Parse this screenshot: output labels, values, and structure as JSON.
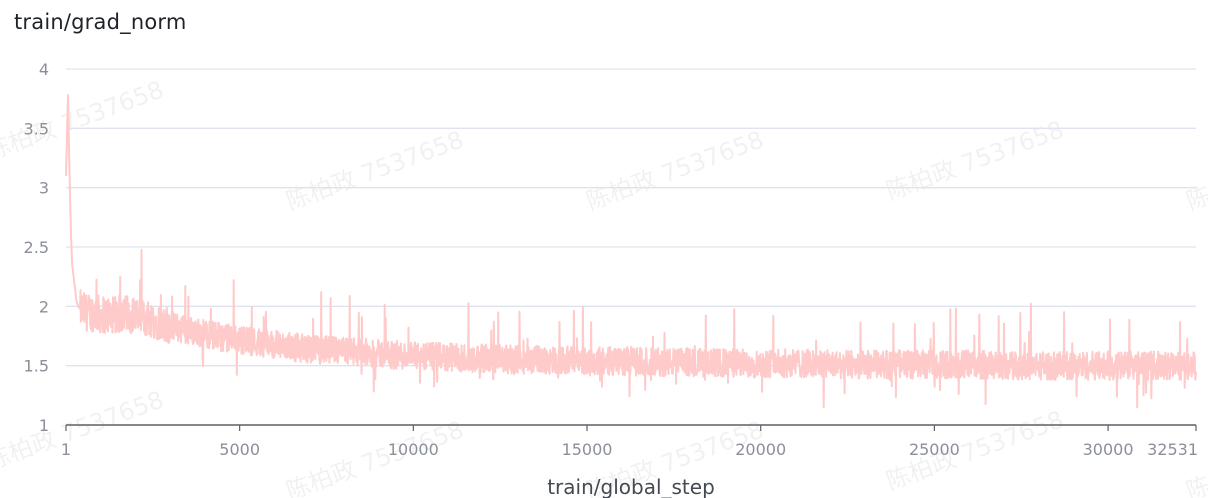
{
  "watermark_text": "陈柏政 7537658",
  "chart_data": {
    "type": "line",
    "title": "train/grad_norm",
    "xlabel": "train/global_step",
    "ylabel": "",
    "xlim": [
      1,
      32531
    ],
    "ylim": [
      1,
      4
    ],
    "x_ticks": [
      1,
      5000,
      10000,
      15000,
      20000,
      25000,
      30000,
      32531
    ],
    "y_ticks": [
      1,
      1.5,
      2,
      2.5,
      3,
      3.5,
      4
    ],
    "grid": true,
    "line_color": "#ffcaca",
    "series": [
      {
        "x": [
          1,
          30,
          60,
          90,
          120,
          150,
          180,
          220,
          260,
          300,
          350,
          400,
          500,
          600,
          700,
          800,
          900,
          1000,
          1200,
          1400,
          1600,
          1800,
          2000,
          2200,
          2400,
          2600,
          2800,
          3000,
          3500,
          4000,
          4500,
          5000,
          5500,
          6000,
          6500,
          7000,
          7500,
          8000,
          8500,
          9000,
          9500,
          10000,
          11000,
          12000,
          13000,
          14000,
          15000,
          16000,
          17000,
          18000,
          19000,
          20000,
          21000,
          22000,
          23000,
          24000,
          25000,
          26000,
          27000,
          28000,
          29000,
          30000,
          31000,
          32000,
          32531
        ],
        "y": [
          3.1,
          3.45,
          3.78,
          3.3,
          2.9,
          2.55,
          2.35,
          2.25,
          2.15,
          2.05,
          2.0,
          1.98,
          1.96,
          1.95,
          1.94,
          1.95,
          1.94,
          1.93,
          1.93,
          1.92,
          1.93,
          1.94,
          1.93,
          1.9,
          1.9,
          1.88,
          1.86,
          1.84,
          1.8,
          1.77,
          1.74,
          1.72,
          1.7,
          1.68,
          1.66,
          1.64,
          1.63,
          1.62,
          1.61,
          1.6,
          1.59,
          1.58,
          1.57,
          1.56,
          1.55,
          1.55,
          1.54,
          1.54,
          1.53,
          1.53,
          1.52,
          1.52,
          1.52,
          1.51,
          1.51,
          1.51,
          1.51,
          1.51,
          1.5,
          1.5,
          1.5,
          1.5,
          1.5,
          1.5,
          1.5
        ]
      }
    ]
  }
}
